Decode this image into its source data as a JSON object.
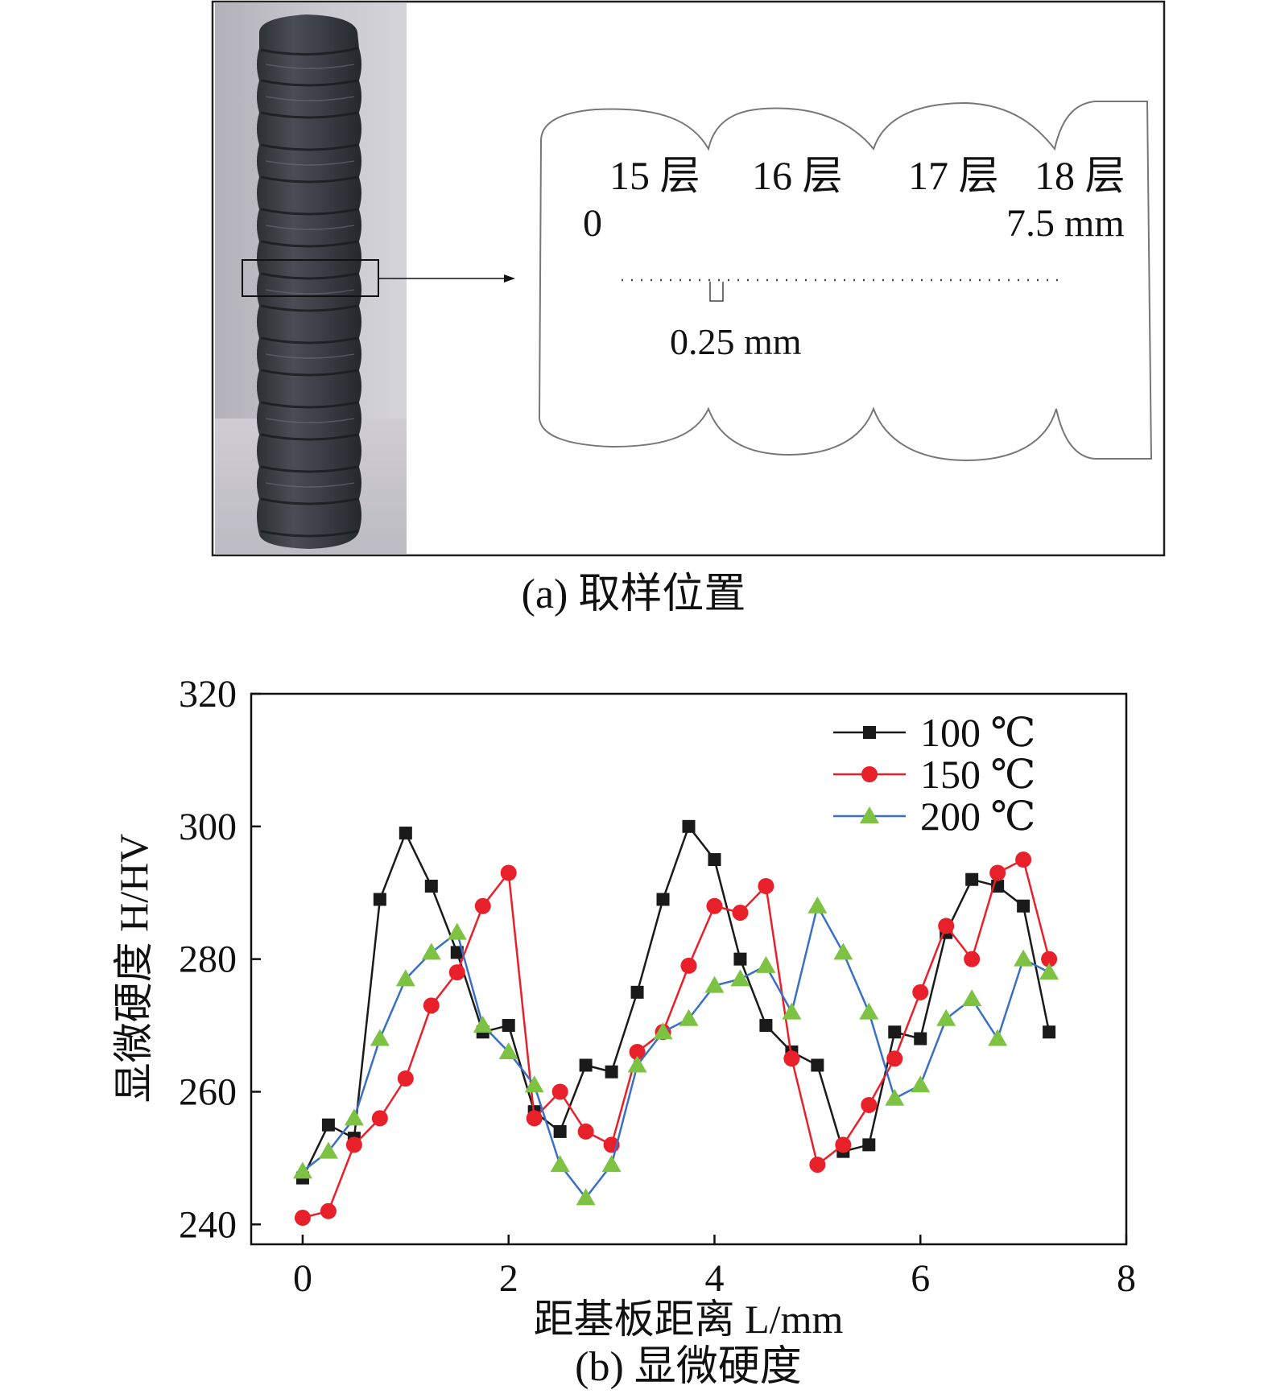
{
  "panel_a": {
    "caption": "(a) 取样位置",
    "layer_labels": [
      "15 层",
      "16 层",
      "17 层",
      "18 层"
    ],
    "start_label": "0",
    "end_label": "7.5 mm",
    "spacing_label": "0.25 mm"
  },
  "panel_b": {
    "caption": "(b) 显微硬度"
  },
  "chart_data": {
    "type": "line",
    "title": "",
    "xlabel": "距基板距离 L/mm",
    "ylabel": "显微硬度 H/HV",
    "xlim": [
      -0.5,
      8
    ],
    "ylim": [
      237,
      320
    ],
    "xticks": [
      0,
      2,
      4,
      6,
      8
    ],
    "yticks": [
      240,
      260,
      280,
      300,
      320
    ],
    "grid": false,
    "legend_position": "top-right",
    "series": [
      {
        "name": "100 ℃",
        "color": "#1a1a1a",
        "marker": "square",
        "x": [
          0,
          0.25,
          0.5,
          0.75,
          1.0,
          1.25,
          1.5,
          1.75,
          2.0,
          2.25,
          2.5,
          2.75,
          3.0,
          3.25,
          3.5,
          3.75,
          4.0,
          4.25,
          4.5,
          4.75,
          5.0,
          5.25,
          5.5,
          5.75,
          6.0,
          6.25,
          6.5,
          6.75,
          7.0,
          7.25
        ],
        "y": [
          247,
          255,
          253,
          289,
          299,
          291,
          281,
          269,
          270,
          257,
          254,
          264,
          263,
          275,
          289,
          300,
          295,
          280,
          270,
          266,
          264,
          251,
          252,
          269,
          268,
          284,
          292,
          291,
          288,
          269
        ]
      },
      {
        "name": "150 ℃",
        "color": "#e8202a",
        "marker": "circle",
        "x": [
          0,
          0.25,
          0.5,
          0.75,
          1.0,
          1.25,
          1.5,
          1.75,
          2.0,
          2.25,
          2.5,
          2.75,
          3.0,
          3.25,
          3.5,
          3.75,
          4.0,
          4.25,
          4.5,
          4.75,
          5.0,
          5.25,
          5.5,
          5.75,
          6.0,
          6.25,
          6.5,
          6.75,
          7.0,
          7.25
        ],
        "y": [
          241,
          242,
          252,
          256,
          262,
          273,
          278,
          288,
          293,
          256,
          260,
          254,
          252,
          266,
          269,
          279,
          288,
          287,
          291,
          265,
          249,
          252,
          258,
          265,
          275,
          285,
          280,
          293,
          295,
          280
        ]
      },
      {
        "name": "200 ℃",
        "color": "#3a6fc4",
        "marker": "triangle",
        "markerColor": "#7dc242",
        "x": [
          0,
          0.25,
          0.5,
          0.75,
          1.0,
          1.25,
          1.5,
          1.75,
          2.0,
          2.25,
          2.5,
          2.75,
          3.0,
          3.25,
          3.5,
          3.75,
          4.0,
          4.25,
          4.5,
          4.75,
          5.0,
          5.25,
          5.5,
          5.75,
          6.0,
          6.25,
          6.5,
          6.75,
          7.0,
          7.25
        ],
        "y": [
          248,
          251,
          256,
          268,
          277,
          281,
          284,
          270,
          266,
          261,
          249,
          244,
          249,
          264,
          269,
          271,
          276,
          277,
          279,
          272,
          288,
          281,
          272,
          259,
          261,
          271,
          274,
          268,
          280,
          278
        ]
      }
    ]
  }
}
